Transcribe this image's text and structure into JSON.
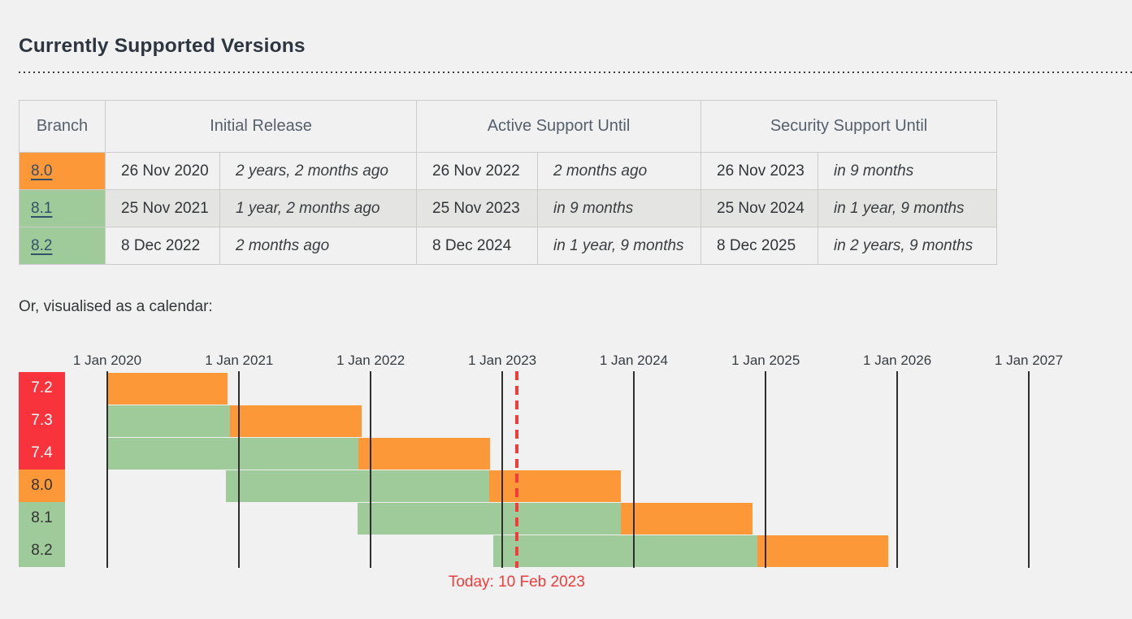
{
  "page": {
    "title": "Currently Supported Versions",
    "calendar_caption": "Or, visualised as a calendar:"
  },
  "support_table": {
    "headers": {
      "branch": "Branch",
      "initial_release": "Initial Release",
      "active_support": "Active Support Until",
      "security_support": "Security Support Until"
    },
    "rows": [
      {
        "branch": "8.0",
        "status": "security",
        "initial_release_date": "26 Nov 2020",
        "initial_release_relative": "2 years, 2 months ago",
        "active_support_date": "26 Nov 2022",
        "active_support_relative": "2 months ago",
        "security_support_date": "26 Nov 2023",
        "security_support_relative": "in 9 months"
      },
      {
        "branch": "8.1",
        "status": "active",
        "initial_release_date": "25 Nov 2021",
        "initial_release_relative": "1 year, 2 months ago",
        "active_support_date": "25 Nov 2023",
        "active_support_relative": "in 9 months",
        "security_support_date": "25 Nov 2024",
        "security_support_relative": "in 1 year, 9 months"
      },
      {
        "branch": "8.2",
        "status": "active",
        "initial_release_date": "8 Dec 2022",
        "initial_release_relative": "2 months ago",
        "active_support_date": "8 Dec 2024",
        "active_support_relative": "in 1 year, 9 months",
        "security_support_date": "8 Dec 2025",
        "security_support_relative": "in 2 years, 9 months"
      }
    ]
  },
  "chart_data": {
    "type": "gantt",
    "title": "PHP branch support calendar",
    "x_axis": {
      "range": [
        "2020-01-01",
        "2027-01-01"
      ],
      "ticks": [
        {
          "label": "1 Jan 2020",
          "date": "2020-01-01"
        },
        {
          "label": "1 Jan 2021",
          "date": "2021-01-01"
        },
        {
          "label": "1 Jan 2022",
          "date": "2022-01-01"
        },
        {
          "label": "1 Jan 2023",
          "date": "2023-01-01"
        },
        {
          "label": "1 Jan 2024",
          "date": "2024-01-01"
        },
        {
          "label": "1 Jan 2025",
          "date": "2025-01-01"
        },
        {
          "label": "1 Jan 2026",
          "date": "2026-01-01"
        },
        {
          "label": "1 Jan 2027",
          "date": "2027-01-01"
        }
      ]
    },
    "rows": [
      {
        "branch": "7.2",
        "status": "eol",
        "segments": [
          {
            "kind": "security",
            "from": "2020-01-01",
            "to": "2020-11-30"
          }
        ]
      },
      {
        "branch": "7.3",
        "status": "eol",
        "segments": [
          {
            "kind": "active",
            "from": "2020-01-01",
            "to": "2020-12-06"
          },
          {
            "kind": "security",
            "from": "2020-12-06",
            "to": "2021-12-06"
          }
        ]
      },
      {
        "branch": "7.4",
        "status": "eol",
        "segments": [
          {
            "kind": "active",
            "from": "2020-01-01",
            "to": "2021-11-28"
          },
          {
            "kind": "security",
            "from": "2021-11-28",
            "to": "2022-11-28"
          }
        ]
      },
      {
        "branch": "8.0",
        "status": "security",
        "segments": [
          {
            "kind": "active",
            "from": "2020-11-26",
            "to": "2022-11-26"
          },
          {
            "kind": "security",
            "from": "2022-11-26",
            "to": "2023-11-26"
          }
        ]
      },
      {
        "branch": "8.1",
        "status": "active",
        "segments": [
          {
            "kind": "active",
            "from": "2021-11-25",
            "to": "2023-11-25"
          },
          {
            "kind": "security",
            "from": "2023-11-25",
            "to": "2024-11-25"
          }
        ]
      },
      {
        "branch": "8.2",
        "status": "active",
        "segments": [
          {
            "kind": "active",
            "from": "2022-12-08",
            "to": "2024-12-08"
          },
          {
            "kind": "security",
            "from": "2024-12-08",
            "to": "2025-12-08"
          }
        ]
      }
    ],
    "today": {
      "date": "2023-02-10",
      "label": "Today: 10 Feb 2023"
    },
    "colors": {
      "active": "#9ecb99",
      "security": "#fc9838",
      "eol": "#f8333c",
      "today": "#f23b3b",
      "gridline": "#2f2f2f"
    },
    "text_on_eol": "#ffffff",
    "text_on_other": "#333333"
  }
}
